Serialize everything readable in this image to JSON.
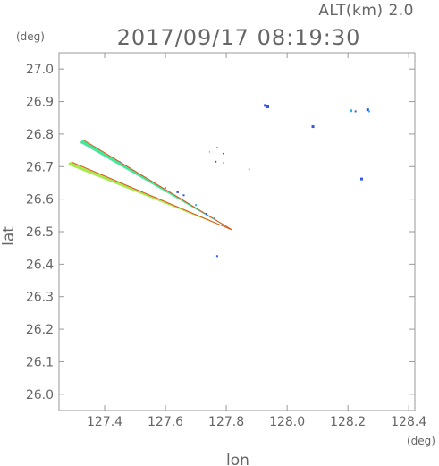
{
  "chart_data": {
    "type": "scatter",
    "title": "2017/09/17 08:19:30",
    "subtitle": "ALT(km)  2.0",
    "xlabel": "lon",
    "ylabel": "lat",
    "xunit": "(deg)",
    "yunit": "(deg)",
    "xlim": [
      127.25,
      128.42
    ],
    "ylim": [
      25.95,
      27.05
    ],
    "xticks": [
      127.4,
      127.6,
      127.8,
      128.0,
      128.2,
      128.4
    ],
    "xtick_labels": [
      "127.4",
      "127.6",
      "127.8",
      "128.0",
      "128.2",
      "128.4"
    ],
    "yticks": [
      26.0,
      26.1,
      26.2,
      26.3,
      26.4,
      26.5,
      26.6,
      26.7,
      26.8,
      26.9,
      27.0
    ],
    "ytick_labels": [
      "26.0",
      "26.1",
      "26.2",
      "26.3",
      "26.4",
      "26.5",
      "26.6",
      "26.7",
      "26.8",
      "26.9",
      "27.0"
    ],
    "grid": false,
    "legend": "none",
    "colors": {
      "frame": "#999999",
      "text": "#666666",
      "upper_band": "#44e89a",
      "lower_band": "#a6ea50",
      "edge": "#e0501e",
      "echo_blue": "#3355ee",
      "echo_cyan": "#22b8ee"
    },
    "bands": [
      {
        "name": "upper",
        "start": [
          127.33,
          26.775
        ],
        "end": [
          127.82,
          26.505
        ],
        "width_start": 0.006,
        "width_end": 0.001,
        "color": "#44e89a",
        "edge_color": "#e0501e"
      },
      {
        "name": "lower",
        "start": [
          127.29,
          26.708
        ],
        "end": [
          127.82,
          26.505
        ],
        "width_start": 0.006,
        "width_end": 0.001,
        "color": "#a6ea50",
        "edge_color": "#e0501e"
      }
    ],
    "points": [
      {
        "x": 127.935,
        "y": 26.885,
        "color": "#3355ee",
        "size": 4
      },
      {
        "x": 127.928,
        "y": 26.888,
        "color": "#3355ee",
        "size": 3
      },
      {
        "x": 128.085,
        "y": 26.823,
        "color": "#3355ee",
        "size": 3
      },
      {
        "x": 128.21,
        "y": 26.872,
        "color": "#22b8ee",
        "size": 3
      },
      {
        "x": 128.225,
        "y": 26.87,
        "color": "#3355ee",
        "size": 2
      },
      {
        "x": 128.265,
        "y": 26.875,
        "color": "#3355ee",
        "size": 3
      },
      {
        "x": 128.27,
        "y": 26.87,
        "color": "#22b8ee",
        "size": 2
      },
      {
        "x": 128.245,
        "y": 26.662,
        "color": "#3355ee",
        "size": 3
      },
      {
        "x": 127.77,
        "y": 26.76,
        "color": "#3355ee",
        "size": 1
      },
      {
        "x": 127.745,
        "y": 26.745,
        "color": "#3355ee",
        "size": 1
      },
      {
        "x": 127.79,
        "y": 26.74,
        "color": "#3355ee",
        "size": 1.5
      },
      {
        "x": 127.765,
        "y": 26.715,
        "color": "#3355ee",
        "size": 2
      },
      {
        "x": 127.79,
        "y": 26.712,
        "color": "#3355ee",
        "size": 1
      },
      {
        "x": 127.875,
        "y": 26.692,
        "color": "#3355ee",
        "size": 1.5
      },
      {
        "x": 127.77,
        "y": 26.425,
        "color": "#3355ee",
        "size": 2
      },
      {
        "x": 127.64,
        "y": 26.622,
        "color": "#3355ee",
        "size": 2.5
      },
      {
        "x": 127.66,
        "y": 26.612,
        "color": "#3355ee",
        "size": 2
      },
      {
        "x": 127.7,
        "y": 26.582,
        "color": "#22b8ee",
        "size": 2
      },
      {
        "x": 127.735,
        "y": 26.555,
        "color": "#3355ee",
        "size": 2
      },
      {
        "x": 127.76,
        "y": 26.542,
        "color": "#22b8ee",
        "size": 1.5
      },
      {
        "x": 127.6,
        "y": 26.635,
        "color": "#22b8ee",
        "size": 2
      },
      {
        "x": 127.45,
        "y": 26.715,
        "color": "#22b8ee",
        "size": 1.5
      }
    ]
  }
}
